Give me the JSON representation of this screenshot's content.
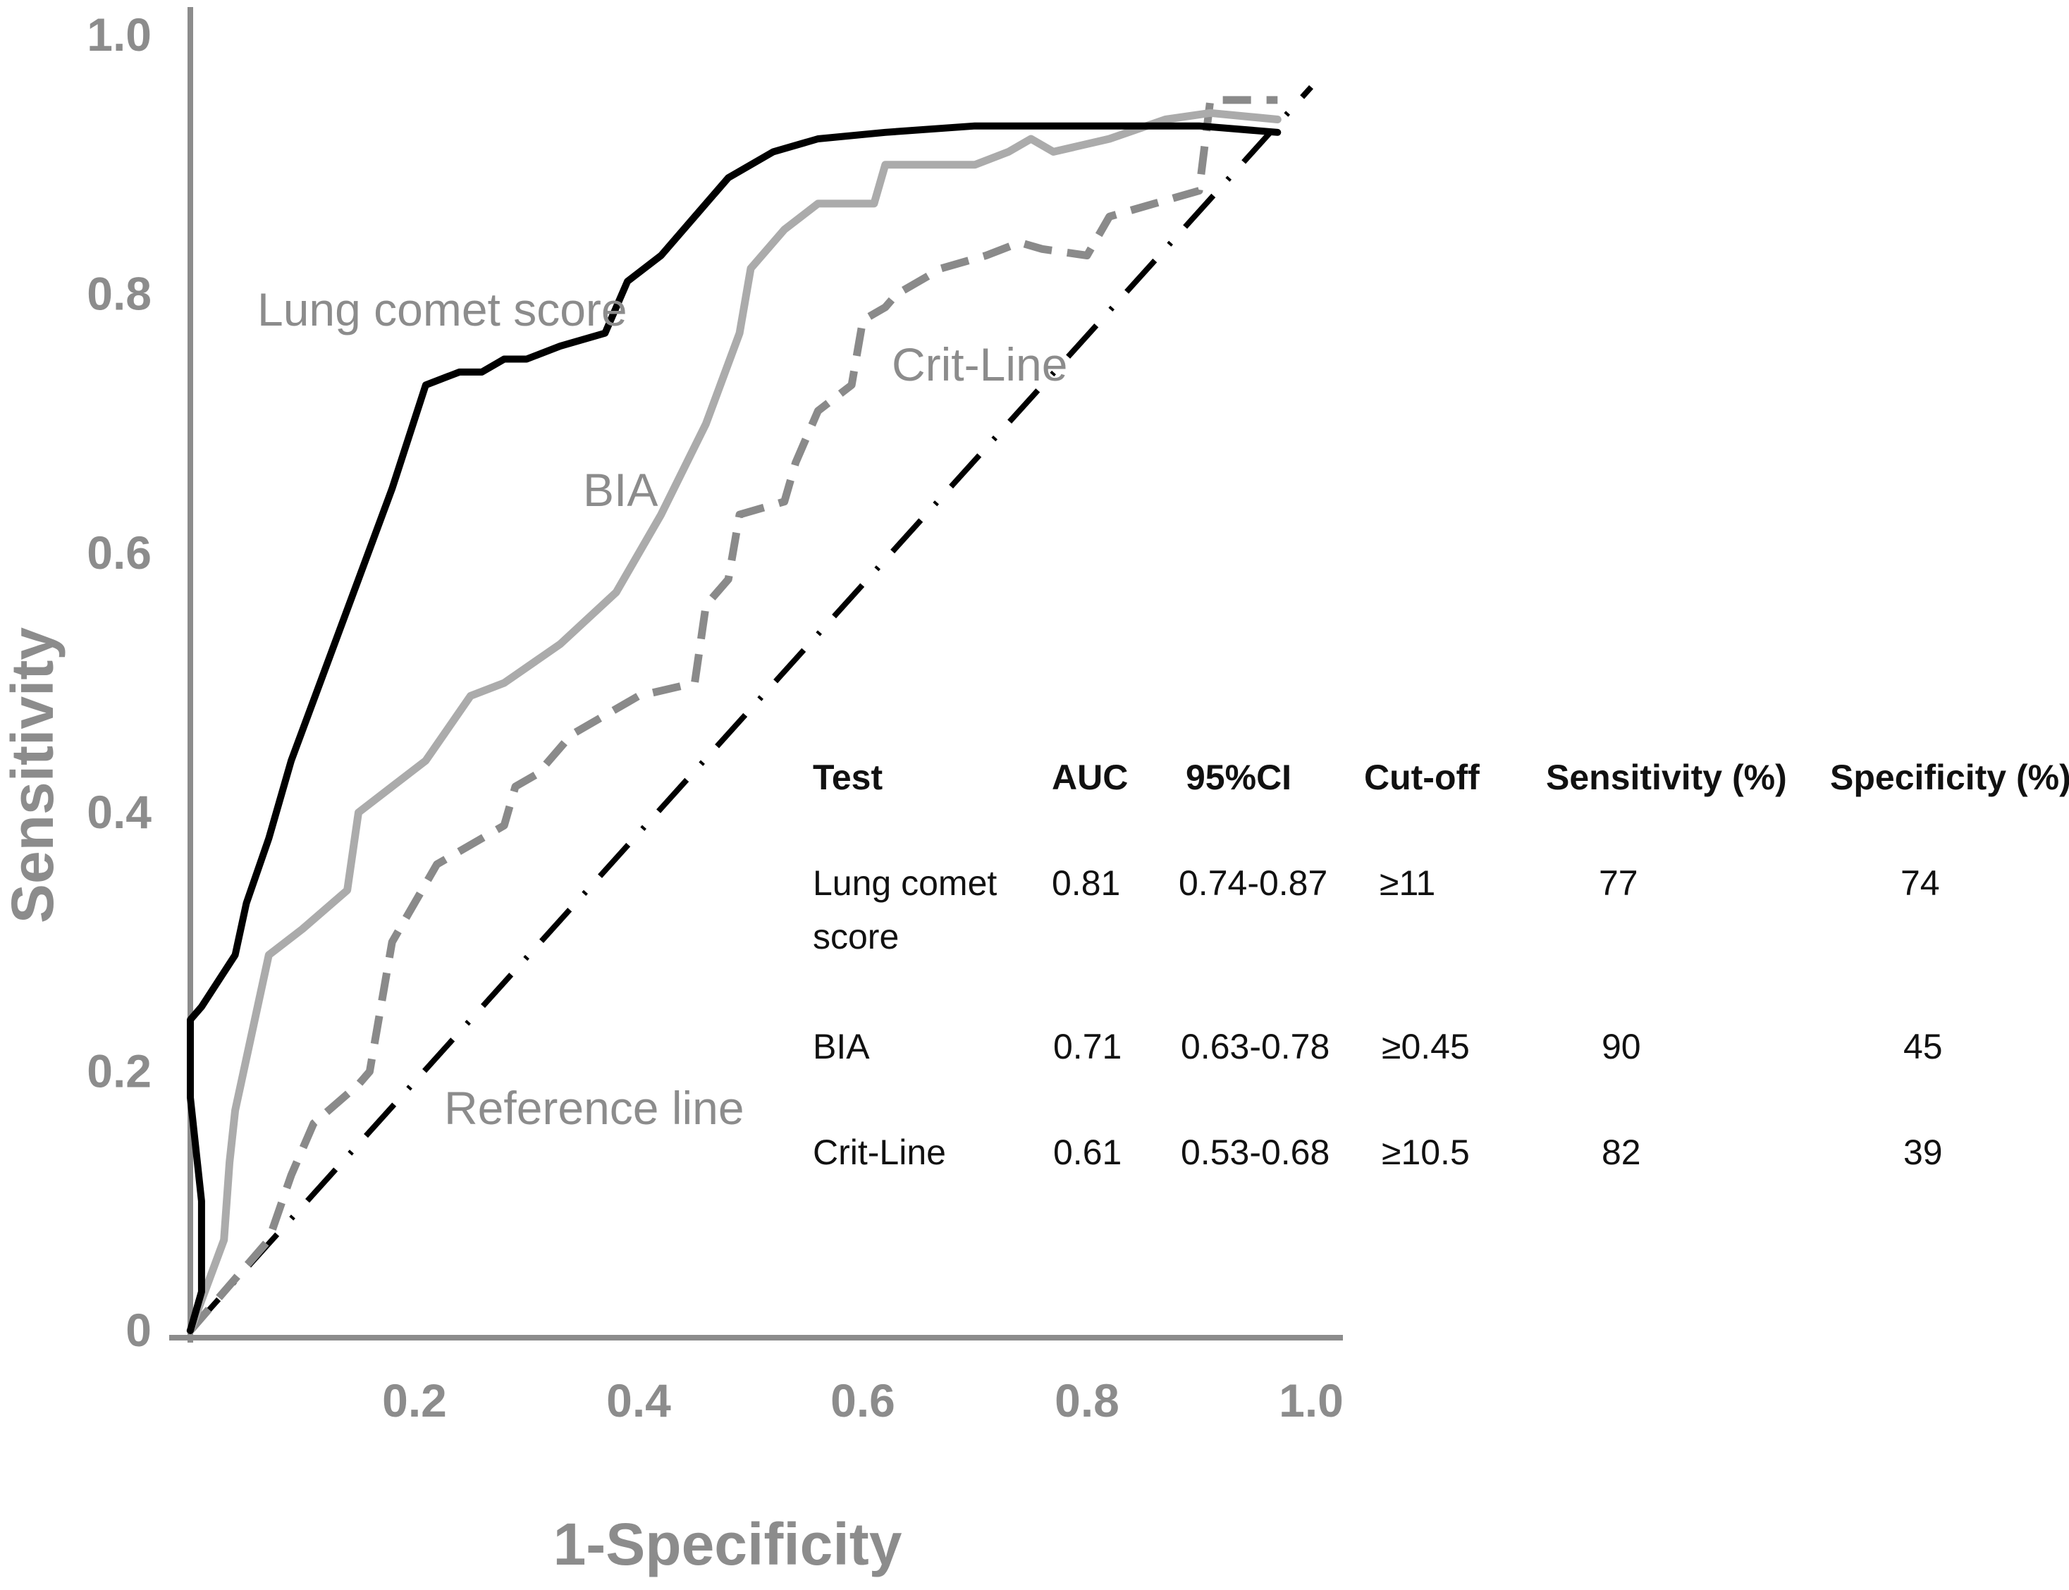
{
  "chart_data": {
    "type": "line",
    "xlabel": "1-Specificity",
    "ylabel": "Sensitivity",
    "xlim": [
      0,
      1.0
    ],
    "ylim": [
      0,
      1.0
    ],
    "x_ticks": [
      "0.2",
      "0.4",
      "0.6",
      "0.8",
      "1.0"
    ],
    "x_tick_values": [
      0.2,
      0.4,
      0.6,
      0.8,
      1.0
    ],
    "y_ticks": [
      "0",
      "0.2",
      "0.4",
      "0.6",
      "0.8",
      "1.0"
    ],
    "y_tick_values": [
      0,
      0.2,
      0.4,
      0.6,
      0.8,
      1.0
    ],
    "grid": false,
    "series": [
      {
        "name": "Lung comet score",
        "color": "#000000",
        "style": "solid",
        "x": [
          0.0,
          0.01,
          0.01,
          0.0,
          0.0,
          0.01,
          0.04,
          0.05,
          0.07,
          0.09,
          0.12,
          0.15,
          0.18,
          0.21,
          0.24,
          0.26,
          0.28,
          0.3,
          0.33,
          0.37,
          0.39,
          0.42,
          0.45,
          0.48,
          0.52,
          0.56,
          0.62,
          0.7,
          0.8,
          0.9,
          0.97
        ],
        "y": [
          0.0,
          0.03,
          0.1,
          0.18,
          0.24,
          0.25,
          0.29,
          0.33,
          0.38,
          0.44,
          0.51,
          0.58,
          0.65,
          0.73,
          0.74,
          0.74,
          0.75,
          0.75,
          0.76,
          0.77,
          0.81,
          0.83,
          0.86,
          0.89,
          0.91,
          0.92,
          0.925,
          0.93,
          0.93,
          0.93,
          0.925
        ]
      },
      {
        "name": "BIA",
        "color": "#ababab",
        "style": "solid",
        "x": [
          0.0,
          0.03,
          0.035,
          0.04,
          0.055,
          0.07,
          0.1,
          0.14,
          0.15,
          0.18,
          0.21,
          0.25,
          0.28,
          0.33,
          0.38,
          0.42,
          0.46,
          0.49,
          0.5,
          0.53,
          0.56,
          0.61,
          0.62,
          0.66,
          0.7,
          0.73,
          0.75,
          0.77,
          0.82,
          0.87,
          0.91,
          0.97
        ],
        "y": [
          0.0,
          0.07,
          0.13,
          0.17,
          0.23,
          0.29,
          0.31,
          0.34,
          0.4,
          0.42,
          0.44,
          0.49,
          0.5,
          0.53,
          0.57,
          0.63,
          0.7,
          0.77,
          0.82,
          0.85,
          0.87,
          0.87,
          0.9,
          0.9,
          0.9,
          0.91,
          0.92,
          0.91,
          0.92,
          0.935,
          0.94,
          0.935
        ]
      },
      {
        "name": "Crit-Line",
        "color": "#8a8a8a",
        "style": "dashed",
        "x": [
          0.0,
          0.07,
          0.09,
          0.11,
          0.15,
          0.16,
          0.18,
          0.22,
          0.26,
          0.28,
          0.29,
          0.31,
          0.34,
          0.4,
          0.45,
          0.46,
          0.48,
          0.49,
          0.53,
          0.54,
          0.56,
          0.59,
          0.6,
          0.62,
          0.63,
          0.67,
          0.71,
          0.74,
          0.76,
          0.8,
          0.82,
          0.86,
          0.9,
          0.91,
          0.97
        ],
        "y": [
          0.0,
          0.07,
          0.12,
          0.16,
          0.19,
          0.2,
          0.3,
          0.36,
          0.38,
          0.39,
          0.42,
          0.43,
          0.46,
          0.49,
          0.5,
          0.56,
          0.58,
          0.63,
          0.64,
          0.67,
          0.71,
          0.73,
          0.78,
          0.79,
          0.8,
          0.82,
          0.83,
          0.84,
          0.835,
          0.83,
          0.86,
          0.87,
          0.88,
          0.95,
          0.95
        ]
      },
      {
        "name": "Reference line",
        "color": "#000000",
        "style": "dash-dot",
        "x": [
          0.0,
          1.0
        ],
        "y": [
          0.0,
          0.96
        ]
      }
    ],
    "series_labels": [
      "Lung comet score",
      "BIA",
      "Crit-Line",
      "Reference line"
    ],
    "table": {
      "headers": [
        "Test",
        "AUC",
        "95%CI",
        "Cut-off",
        "Sensitivity (%)",
        "Specificity (%)"
      ],
      "rows": [
        [
          "Lung comet score",
          "0.81",
          "0.74-0.87",
          "≥11",
          "77",
          "74"
        ],
        [
          "BIA",
          "0.71",
          "0.63-0.78",
          "≥0.45",
          "90",
          "45"
        ],
        [
          "Crit-Line",
          "0.61",
          "0.53-0.68",
          "≥10.5",
          "82",
          "39"
        ]
      ]
    }
  }
}
